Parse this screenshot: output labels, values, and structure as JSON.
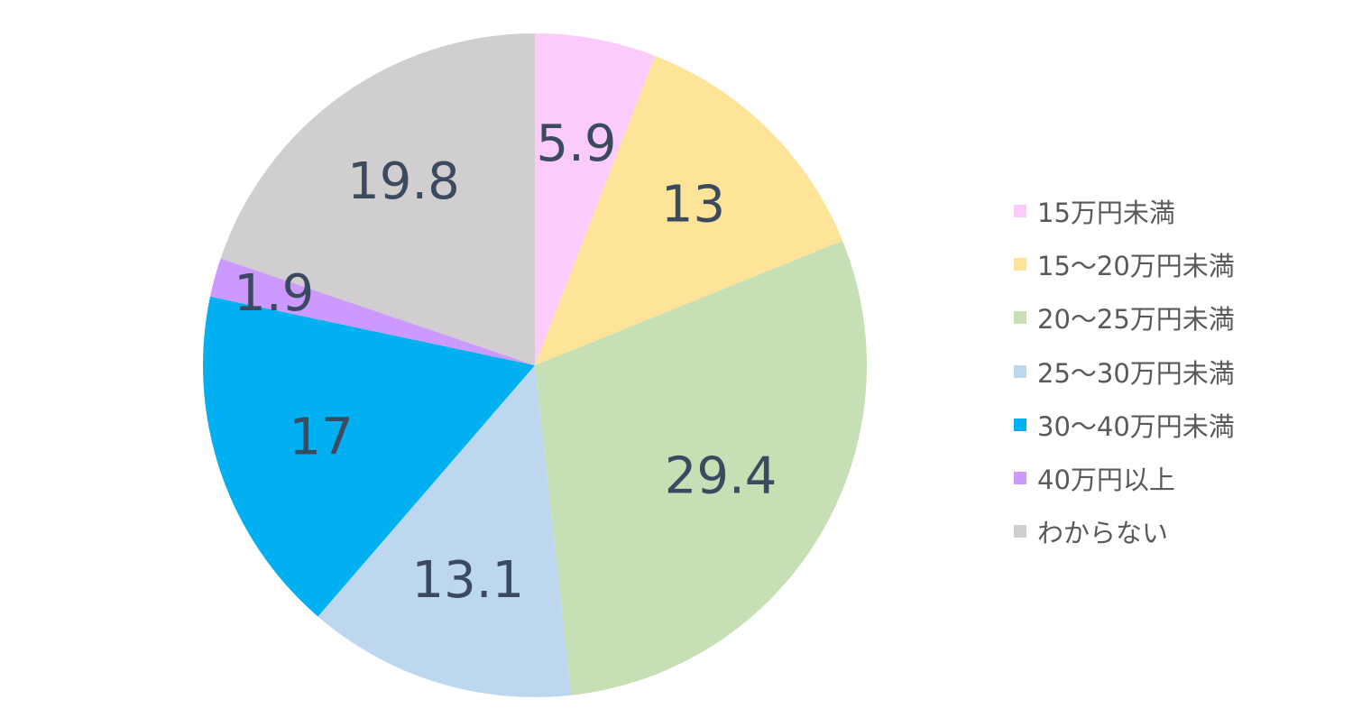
{
  "chart_data": {
    "type": "pie",
    "slices": [
      {
        "label": "15万円未満",
        "value": 5.9,
        "display": "5.9",
        "color": "#FBCCFB"
      },
      {
        "label": "15～20万円未満",
        "value": 13,
        "display": "13",
        "color": "#FDE498"
      },
      {
        "label": "20～25万円未満",
        "value": 29.4,
        "display": "29.4",
        "color": "#C6DFB4"
      },
      {
        "label": "25～30万円未満",
        "value": 13.1,
        "display": "13.1",
        "color": "#BDD7EE"
      },
      {
        "label": "30～40万円未満",
        "value": 17,
        "display": "17",
        "color": "#00B0F0"
      },
      {
        "label": "40万円以上",
        "value": 1.9,
        "display": "1.9",
        "color": "#CC99FF"
      },
      {
        "label": "わからない",
        "value": 19.8,
        "display": "19.8",
        "color": "#D0CECE"
      }
    ],
    "start_angle_deg": 0,
    "direction": "clockwise",
    "legend_position": "right",
    "label_color": "#3B4A5E"
  }
}
